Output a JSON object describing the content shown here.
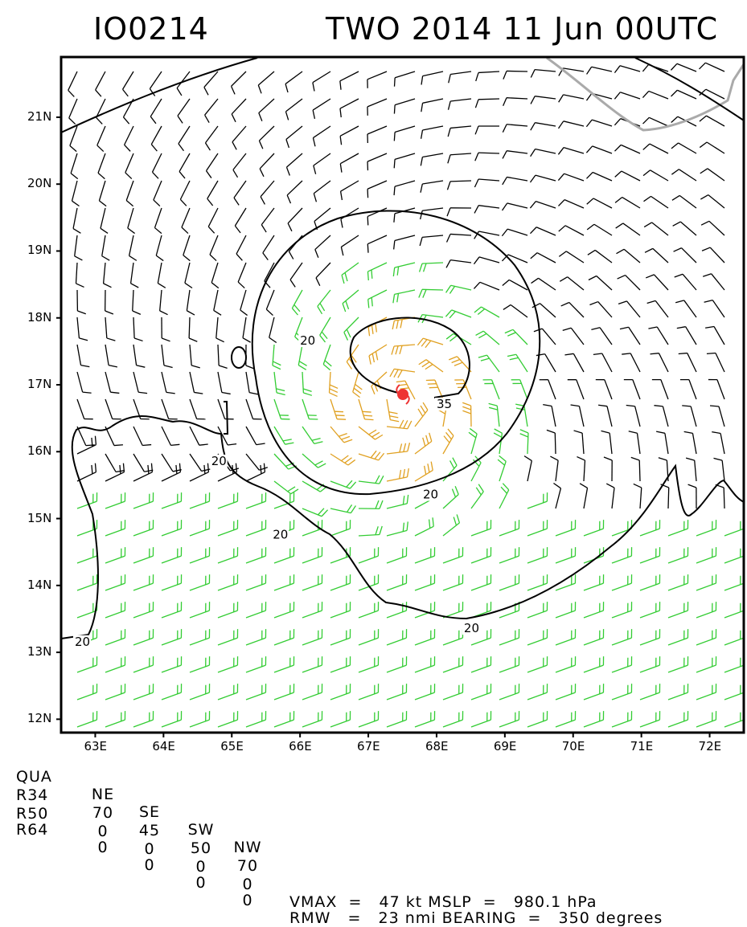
{
  "header": {
    "storm_id": "IO0214",
    "title": "TWO 2014 11 Jun 00UTC"
  },
  "map": {
    "lat_labels": [
      "21N",
      "20N",
      "19N",
      "18N",
      "17N",
      "16N",
      "15N",
      "14N",
      "13N",
      "12N"
    ],
    "lon_labels": [
      "63E",
      "64E",
      "65E",
      "66E",
      "67E",
      "68E",
      "69E",
      "70E",
      "71E",
      "72E"
    ],
    "lat_range": [
      11.8,
      21.9
    ],
    "lon_range": [
      62.5,
      72.5
    ],
    "storm_center": {
      "lat": 16.75,
      "lon": 67.45
    },
    "contour_labels": [
      "20",
      "20",
      "20",
      "20",
      "20",
      "20",
      "35"
    ],
    "colors": {
      "calm_barbs": "#000000",
      "tropical_storm_barbs": "#33cc33",
      "gale_barbs": "#e0a020",
      "center_marker": "#ee3333",
      "coastline": "#aaaaaa"
    }
  },
  "footer": {
    "quadrant_header": [
      "QUA",
      "NE",
      "SE",
      "SW",
      "NW"
    ],
    "rows": [
      {
        "label": "R34",
        "values": [
          "70",
          "45",
          "50",
          "70"
        ]
      },
      {
        "label": "R50",
        "values": [
          "0",
          "0",
          "0",
          "0"
        ]
      },
      {
        "label": "R64",
        "values": [
          "0",
          "0",
          "0",
          "0"
        ]
      }
    ],
    "vmax_text": "VMAX  =   47 kt MSLP  =   980.1 hPa",
    "rmw_text": "RMW   =   23 nmi BEARING  =   350 degrees"
  }
}
